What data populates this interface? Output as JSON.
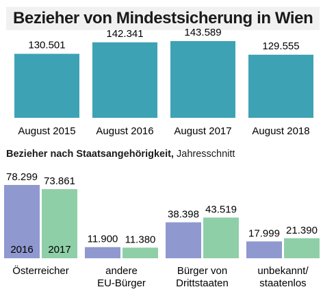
{
  "title": "Bezieher von Mindestsicherung in Wien",
  "subtitle": {
    "bold": "Bezieher nach Staatsangehörigkeit,",
    "normal": "Jahresschnitt"
  },
  "colors": {
    "total": "#3ea2b5",
    "y2016": "#8f98cf",
    "y2017": "#8fcfa8"
  },
  "chart_data": [
    {
      "type": "bar",
      "title": "Bezieher von Mindestsicherung in Wien",
      "categories": [
        "August 2015",
        "August 2016",
        "August 2017",
        "August 2018"
      ],
      "values": [
        130501,
        142341,
        143589,
        129555
      ],
      "value_labels": [
        "130.501",
        "142.341",
        "143.589",
        "129.555"
      ]
    },
    {
      "type": "bar",
      "title": "Bezieher nach Staatsangehörigkeit, Jahresschnitt",
      "categories": [
        [
          "Österreicher"
        ],
        [
          "andere",
          "EU-Bürger"
        ],
        [
          "Bürger von",
          "Drittstaaten"
        ],
        [
          "unbekannt/",
          "staatenlos"
        ]
      ],
      "series": [
        {
          "name": "2016",
          "values": [
            78299,
            11900,
            38398,
            17999
          ],
          "value_labels": [
            "78.299",
            "11.900",
            "38.398",
            "17.999"
          ]
        },
        {
          "name": "2017",
          "values": [
            73861,
            11380,
            43519,
            21390
          ],
          "value_labels": [
            "73.861",
            "11.380",
            "43.519",
            "21.390"
          ]
        }
      ]
    }
  ]
}
